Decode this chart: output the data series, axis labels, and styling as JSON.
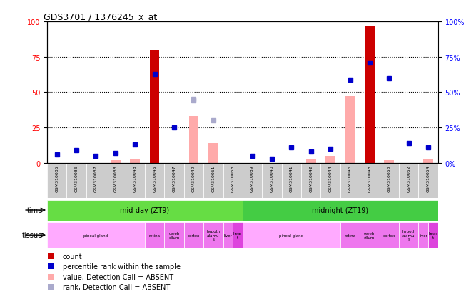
{
  "title": "GDS3701 / 1376245_x_at",
  "samples": [
    "GSM310035",
    "GSM310036",
    "GSM310037",
    "GSM310038",
    "GSM310043",
    "GSM310045",
    "GSM310047",
    "GSM310049",
    "GSM310051",
    "GSM310053",
    "GSM310039",
    "GSM310040",
    "GSM310041",
    "GSM310042",
    "GSM310044",
    "GSM310046",
    "GSM310048",
    "GSM310050",
    "GSM310052",
    "GSM310054"
  ],
  "count_values": [
    0,
    0,
    0,
    0,
    0,
    80,
    0,
    0,
    0,
    0,
    0,
    0,
    0,
    0,
    0,
    0,
    97,
    0,
    0,
    0
  ],
  "rank_values": [
    6,
    9,
    5,
    7,
    13,
    63,
    25,
    45,
    30,
    0,
    5,
    3,
    11,
    8,
    10,
    59,
    71,
    60,
    14,
    11
  ],
  "absent_value": [
    0,
    0,
    0,
    2,
    3,
    8,
    0,
    33,
    14,
    0,
    0,
    0,
    0,
    3,
    5,
    47,
    0,
    2,
    0,
    3
  ],
  "absent_rank": [
    0,
    0,
    0,
    0,
    0,
    0,
    0,
    44,
    0,
    0,
    0,
    0,
    0,
    0,
    0,
    0,
    0,
    0,
    0,
    0
  ],
  "count_present": [
    false,
    false,
    false,
    false,
    false,
    true,
    false,
    false,
    false,
    false,
    false,
    false,
    false,
    false,
    false,
    false,
    true,
    false,
    false,
    false
  ],
  "rank_present": [
    true,
    true,
    true,
    true,
    true,
    true,
    true,
    false,
    false,
    false,
    true,
    true,
    true,
    true,
    true,
    true,
    true,
    true,
    true,
    true
  ],
  "ylim": [
    0,
    100
  ],
  "yticks": [
    0,
    25,
    50,
    75,
    100
  ],
  "color_count": "#cc0000",
  "color_rank": "#0000cc",
  "color_absent_value": "#ffaaaa",
  "color_absent_rank": "#aaaacc",
  "bg_color": "#ffffff",
  "time_color1": "#66dd44",
  "time_color2": "#44cc44",
  "tissue_light": "#ffaaff",
  "tissue_dark": "#ee66ee"
}
